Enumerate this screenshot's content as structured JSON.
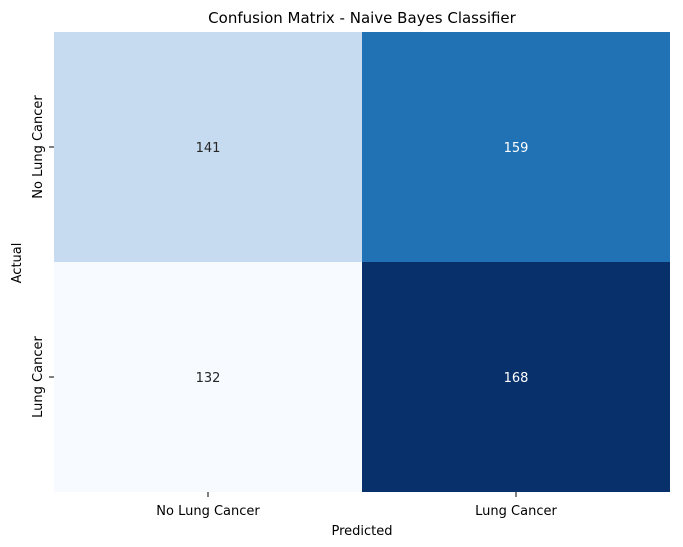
{
  "chart_data": {
    "type": "heatmap",
    "title": "Confusion Matrix - Naive Bayes Classifier",
    "xlabel": "Predicted",
    "ylabel": "Actual",
    "x_categories": [
      "No Lung Cancer",
      "Lung Cancer"
    ],
    "y_categories": [
      "No Lung Cancer",
      "Lung Cancer"
    ],
    "values": [
      [
        141,
        159
      ],
      [
        132,
        168
      ]
    ],
    "colormap": "Blues",
    "colorbar": false,
    "colors": {
      "141": "#c6dbef",
      "159": "#2171b5",
      "132": "#f7fbff",
      "168": "#08306b"
    }
  }
}
